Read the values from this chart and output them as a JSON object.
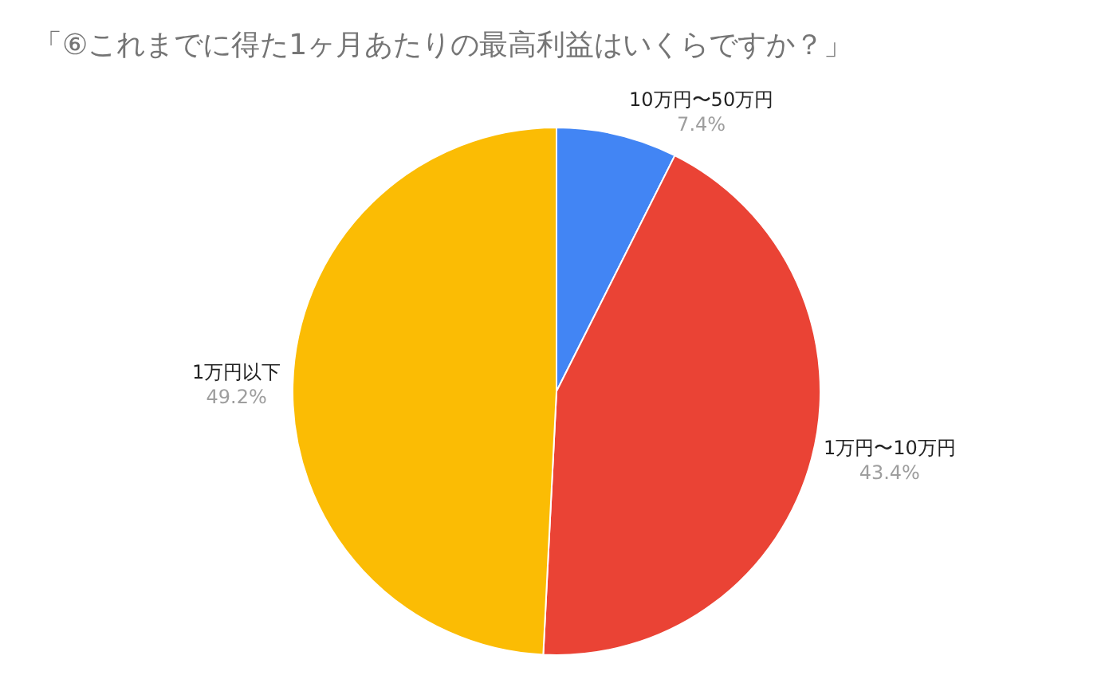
{
  "chart_data": {
    "type": "pie",
    "title": "「⑥これまでに得た1ヶ月あたりの最高利益はいくらですか？」",
    "categories": [
      "10万円〜50万円",
      "1万円〜10万円",
      "1万円以下"
    ],
    "values": [
      7.4,
      43.4,
      49.2
    ],
    "colors": [
      "#4285f4",
      "#ea4335",
      "#fbbc04"
    ],
    "value_labels": [
      "7.4%",
      "43.4%",
      "49.2%"
    ],
    "legend": false
  }
}
